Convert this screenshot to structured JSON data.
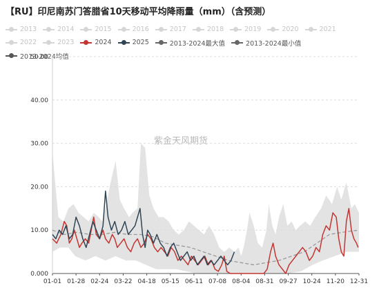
{
  "chart_data": {
    "type": "line",
    "title": "【RU】印尼南苏门答腊省10天移动平均降雨量（mm）（含预测）",
    "watermark": "紫金天风期货",
    "ylim": [
      0,
      50
    ],
    "y_ticks": [
      "0.000",
      "10.00",
      "20.00",
      "30.00",
      "40.00",
      "50.00"
    ],
    "x_ticks": [
      "01-01",
      "01-28",
      "02-24",
      "03-22",
      "04-18",
      "05-15",
      "06-11",
      "07-08",
      "08-04",
      "08-31",
      "09-27",
      "10-24",
      "11-20",
      "12-31"
    ],
    "legend_position": "top",
    "legend": [
      {
        "name": "2013",
        "color": "#d6d6d6",
        "active": false
      },
      {
        "name": "2014",
        "color": "#d6d6d6",
        "active": false
      },
      {
        "name": "2015",
        "color": "#d6d6d6",
        "active": false
      },
      {
        "name": "2016",
        "color": "#d6d6d6",
        "active": false
      },
      {
        "name": "2017",
        "color": "#d6d6d6",
        "active": false
      },
      {
        "name": "2018",
        "color": "#d6d6d6",
        "active": false
      },
      {
        "name": "2019",
        "color": "#d6d6d6",
        "active": false
      },
      {
        "name": "2020",
        "color": "#d6d6d6",
        "active": false
      },
      {
        "name": "2021",
        "color": "#d6d6d6",
        "active": false
      },
      {
        "name": "2022",
        "color": "#d6d6d6",
        "active": false
      },
      {
        "name": "2023",
        "color": "#d6d6d6",
        "active": false
      },
      {
        "name": "2024",
        "color": "#c23531",
        "active": true
      },
      {
        "name": "2025",
        "color": "#2f4554",
        "active": true
      },
      {
        "name": "2013-2024最大值",
        "color": "#666666",
        "active": true
      },
      {
        "name": "2013-2024最小值",
        "color": "#666666",
        "active": true
      },
      {
        "name": "2013-2024均值",
        "color": "#555555",
        "active": true
      }
    ],
    "series": [
      {
        "name": "2013-2024最大值",
        "style": "area",
        "color": "#e3e3e3",
        "points": [
          [
            1,
            28
          ],
          [
            8,
            13
          ],
          [
            14,
            12
          ],
          [
            20,
            15
          ],
          [
            26,
            16
          ],
          [
            32,
            14
          ],
          [
            38,
            13
          ],
          [
            44,
            12
          ],
          [
            50,
            14
          ],
          [
            56,
            13
          ],
          [
            60,
            12
          ],
          [
            64,
            15
          ],
          [
            70,
            21
          ],
          [
            76,
            26
          ],
          [
            81,
            17
          ],
          [
            86,
            15
          ],
          [
            92,
            13
          ],
          [
            96,
            14
          ],
          [
            102,
            15
          ],
          [
            106,
            30
          ],
          [
            111,
            29
          ],
          [
            116,
            18
          ],
          [
            121,
            15
          ],
          [
            127,
            13
          ],
          [
            133,
            13
          ],
          [
            139,
            12
          ],
          [
            145,
            10
          ],
          [
            151,
            9
          ],
          [
            157,
            10
          ],
          [
            163,
            12
          ],
          [
            169,
            11
          ],
          [
            175,
            10
          ],
          [
            181,
            9
          ],
          [
            187,
            11
          ],
          [
            193,
            9
          ],
          [
            199,
            6
          ],
          [
            205,
            5
          ],
          [
            211,
            6
          ],
          [
            217,
            5
          ],
          [
            222,
            6
          ],
          [
            225,
            4
          ],
          [
            228,
            6
          ],
          [
            232,
            10
          ],
          [
            235,
            14
          ],
          [
            240,
            11
          ],
          [
            245,
            7
          ],
          [
            250,
            6
          ],
          [
            255,
            10
          ],
          [
            258,
            16
          ],
          [
            262,
            11
          ],
          [
            266,
            9
          ],
          [
            270,
            13
          ],
          [
            275,
            16
          ],
          [
            280,
            11
          ],
          [
            285,
            12
          ],
          [
            290,
            10
          ],
          [
            295,
            11
          ],
          [
            301,
            12
          ],
          [
            307,
            11
          ],
          [
            313,
            13
          ],
          [
            320,
            15
          ],
          [
            326,
            18
          ],
          [
            333,
            16
          ],
          [
            339,
            20
          ],
          [
            344,
            17
          ],
          [
            350,
            21
          ],
          [
            356,
            15
          ],
          [
            360,
            16
          ],
          [
            365,
            14
          ]
        ]
      },
      {
        "name": "2013-2024最小值",
        "style": "area-cut",
        "color": "#ffffff",
        "points": [
          [
            1,
            5
          ],
          [
            10,
            6
          ],
          [
            20,
            6
          ],
          [
            28,
            4
          ],
          [
            40,
            3
          ],
          [
            52,
            4
          ],
          [
            64,
            3
          ],
          [
            76,
            4
          ],
          [
            88,
            3
          ],
          [
            100,
            3
          ],
          [
            112,
            2
          ],
          [
            124,
            1
          ],
          [
            136,
            1
          ],
          [
            148,
            1
          ],
          [
            160,
            0.5
          ],
          [
            172,
            0
          ],
          [
            184,
            0
          ],
          [
            200,
            0
          ],
          [
            220,
            0
          ],
          [
            240,
            0
          ],
          [
            260,
            0
          ],
          [
            280,
            0
          ],
          [
            296,
            0.5
          ],
          [
            310,
            2
          ],
          [
            322,
            3
          ],
          [
            336,
            4
          ],
          [
            350,
            5
          ],
          [
            365,
            5
          ]
        ]
      },
      {
        "name": "2013-2024均值",
        "style": "dashed",
        "color": "#999999",
        "points": [
          [
            1,
            10
          ],
          [
            15,
            9
          ],
          [
            30,
            9.5
          ],
          [
            45,
            9
          ],
          [
            60,
            9
          ],
          [
            75,
            9.5
          ],
          [
            90,
            9
          ],
          [
            105,
            9
          ],
          [
            120,
            8.5
          ],
          [
            135,
            7
          ],
          [
            150,
            6.5
          ],
          [
            165,
            6
          ],
          [
            180,
            5
          ],
          [
            195,
            4
          ],
          [
            210,
            3
          ],
          [
            225,
            2.5
          ],
          [
            240,
            2
          ],
          [
            255,
            2.5
          ],
          [
            270,
            3
          ],
          [
            285,
            4
          ],
          [
            300,
            5
          ],
          [
            315,
            7
          ],
          [
            330,
            9
          ],
          [
            345,
            9.5
          ],
          [
            365,
            10
          ]
        ]
      },
      {
        "name": "2024",
        "style": "line",
        "color": "#c23531",
        "points": [
          [
            1,
            8
          ],
          [
            6,
            7
          ],
          [
            11,
            9
          ],
          [
            15,
            12
          ],
          [
            18,
            11
          ],
          [
            21,
            7
          ],
          [
            24,
            8
          ],
          [
            27,
            10
          ],
          [
            30,
            8
          ],
          [
            33,
            6
          ],
          [
            36,
            7
          ],
          [
            40,
            8
          ],
          [
            44,
            7
          ],
          [
            47,
            10
          ],
          [
            50,
            13
          ],
          [
            53,
            9
          ],
          [
            57,
            8
          ],
          [
            61,
            10
          ],
          [
            64,
            8
          ],
          [
            68,
            7
          ],
          [
            72,
            9
          ],
          [
            75,
            8
          ],
          [
            78,
            6
          ],
          [
            82,
            7
          ],
          [
            86,
            8
          ],
          [
            90,
            6
          ],
          [
            94,
            5
          ],
          [
            98,
            7
          ],
          [
            102,
            8
          ],
          [
            106,
            6
          ],
          [
            110,
            7
          ],
          [
            114,
            9
          ],
          [
            118,
            8
          ],
          [
            122,
            6
          ],
          [
            126,
            5
          ],
          [
            130,
            6
          ],
          [
            134,
            5
          ],
          [
            138,
            4
          ],
          [
            142,
            6
          ],
          [
            146,
            5
          ],
          [
            150,
            3
          ],
          [
            154,
            4
          ],
          [
            158,
            3
          ],
          [
            162,
            2
          ],
          [
            166,
            4
          ],
          [
            170,
            3
          ],
          [
            174,
            2
          ],
          [
            178,
            3
          ],
          [
            182,
            4
          ],
          [
            186,
            2
          ],
          [
            190,
            3
          ],
          [
            194,
            1
          ],
          [
            198,
            0.5
          ],
          [
            202,
            2
          ],
          [
            205,
            4
          ],
          [
            208,
            0.5
          ],
          [
            212,
            0
          ],
          [
            216,
            0
          ],
          [
            222,
            0
          ],
          [
            228,
            0
          ],
          [
            234,
            0
          ],
          [
            240,
            0
          ],
          [
            246,
            0
          ],
          [
            252,
            0
          ],
          [
            256,
            1
          ],
          [
            260,
            5
          ],
          [
            263,
            7
          ],
          [
            266,
            4
          ],
          [
            270,
            2
          ],
          [
            274,
            1
          ],
          [
            278,
            0
          ],
          [
            282,
            2
          ],
          [
            286,
            3
          ],
          [
            290,
            4
          ],
          [
            294,
            5
          ],
          [
            298,
            6
          ],
          [
            302,
            5
          ],
          [
            306,
            3
          ],
          [
            310,
            4
          ],
          [
            314,
            6
          ],
          [
            318,
            5
          ],
          [
            322,
            9
          ],
          [
            326,
            11
          ],
          [
            330,
            10
          ],
          [
            334,
            14
          ],
          [
            338,
            13
          ],
          [
            341,
            8
          ],
          [
            344,
            5
          ],
          [
            347,
            4
          ],
          [
            350,
            12
          ],
          [
            353,
            15
          ],
          [
            356,
            10
          ],
          [
            359,
            8
          ],
          [
            362,
            7
          ],
          [
            364,
            6
          ]
        ]
      },
      {
        "name": "2025",
        "style": "line",
        "color": "#2f4554",
        "points": [
          [
            1,
            9
          ],
          [
            5,
            8
          ],
          [
            9,
            10
          ],
          [
            13,
            9
          ],
          [
            17,
            11
          ],
          [
            21,
            8
          ],
          [
            25,
            9
          ],
          [
            29,
            13
          ],
          [
            33,
            11
          ],
          [
            37,
            8
          ],
          [
            41,
            6
          ],
          [
            45,
            9
          ],
          [
            49,
            12
          ],
          [
            53,
            10
          ],
          [
            57,
            8
          ],
          [
            61,
            11
          ],
          [
            64,
            19
          ],
          [
            67,
            13
          ],
          [
            71,
            10
          ],
          [
            75,
            12
          ],
          [
            79,
            9
          ],
          [
            83,
            10
          ],
          [
            87,
            12
          ],
          [
            91,
            9
          ],
          [
            95,
            10
          ],
          [
            99,
            11
          ],
          [
            102,
            13
          ],
          [
            105,
            15
          ],
          [
            108,
            9
          ],
          [
            111,
            6
          ],
          [
            114,
            10
          ],
          [
            117,
            9
          ],
          [
            121,
            7
          ],
          [
            125,
            9
          ],
          [
            129,
            7
          ],
          [
            133,
            6
          ],
          [
            137,
            4
          ],
          [
            141,
            6
          ],
          [
            145,
            7
          ],
          [
            149,
            5
          ],
          [
            153,
            3
          ],
          [
            157,
            4
          ],
          [
            161,
            5
          ],
          [
            165,
            3
          ],
          [
            169,
            4
          ],
          [
            173,
            2
          ],
          [
            177,
            3
          ],
          [
            181,
            4
          ],
          [
            185,
            2
          ],
          [
            189,
            3
          ],
          [
            193,
            2
          ],
          [
            197,
            3
          ],
          [
            201,
            4
          ],
          [
            205,
            3
          ],
          [
            209,
            2
          ],
          [
            213,
            3
          ],
          [
            217,
            5
          ]
        ]
      }
    ]
  }
}
